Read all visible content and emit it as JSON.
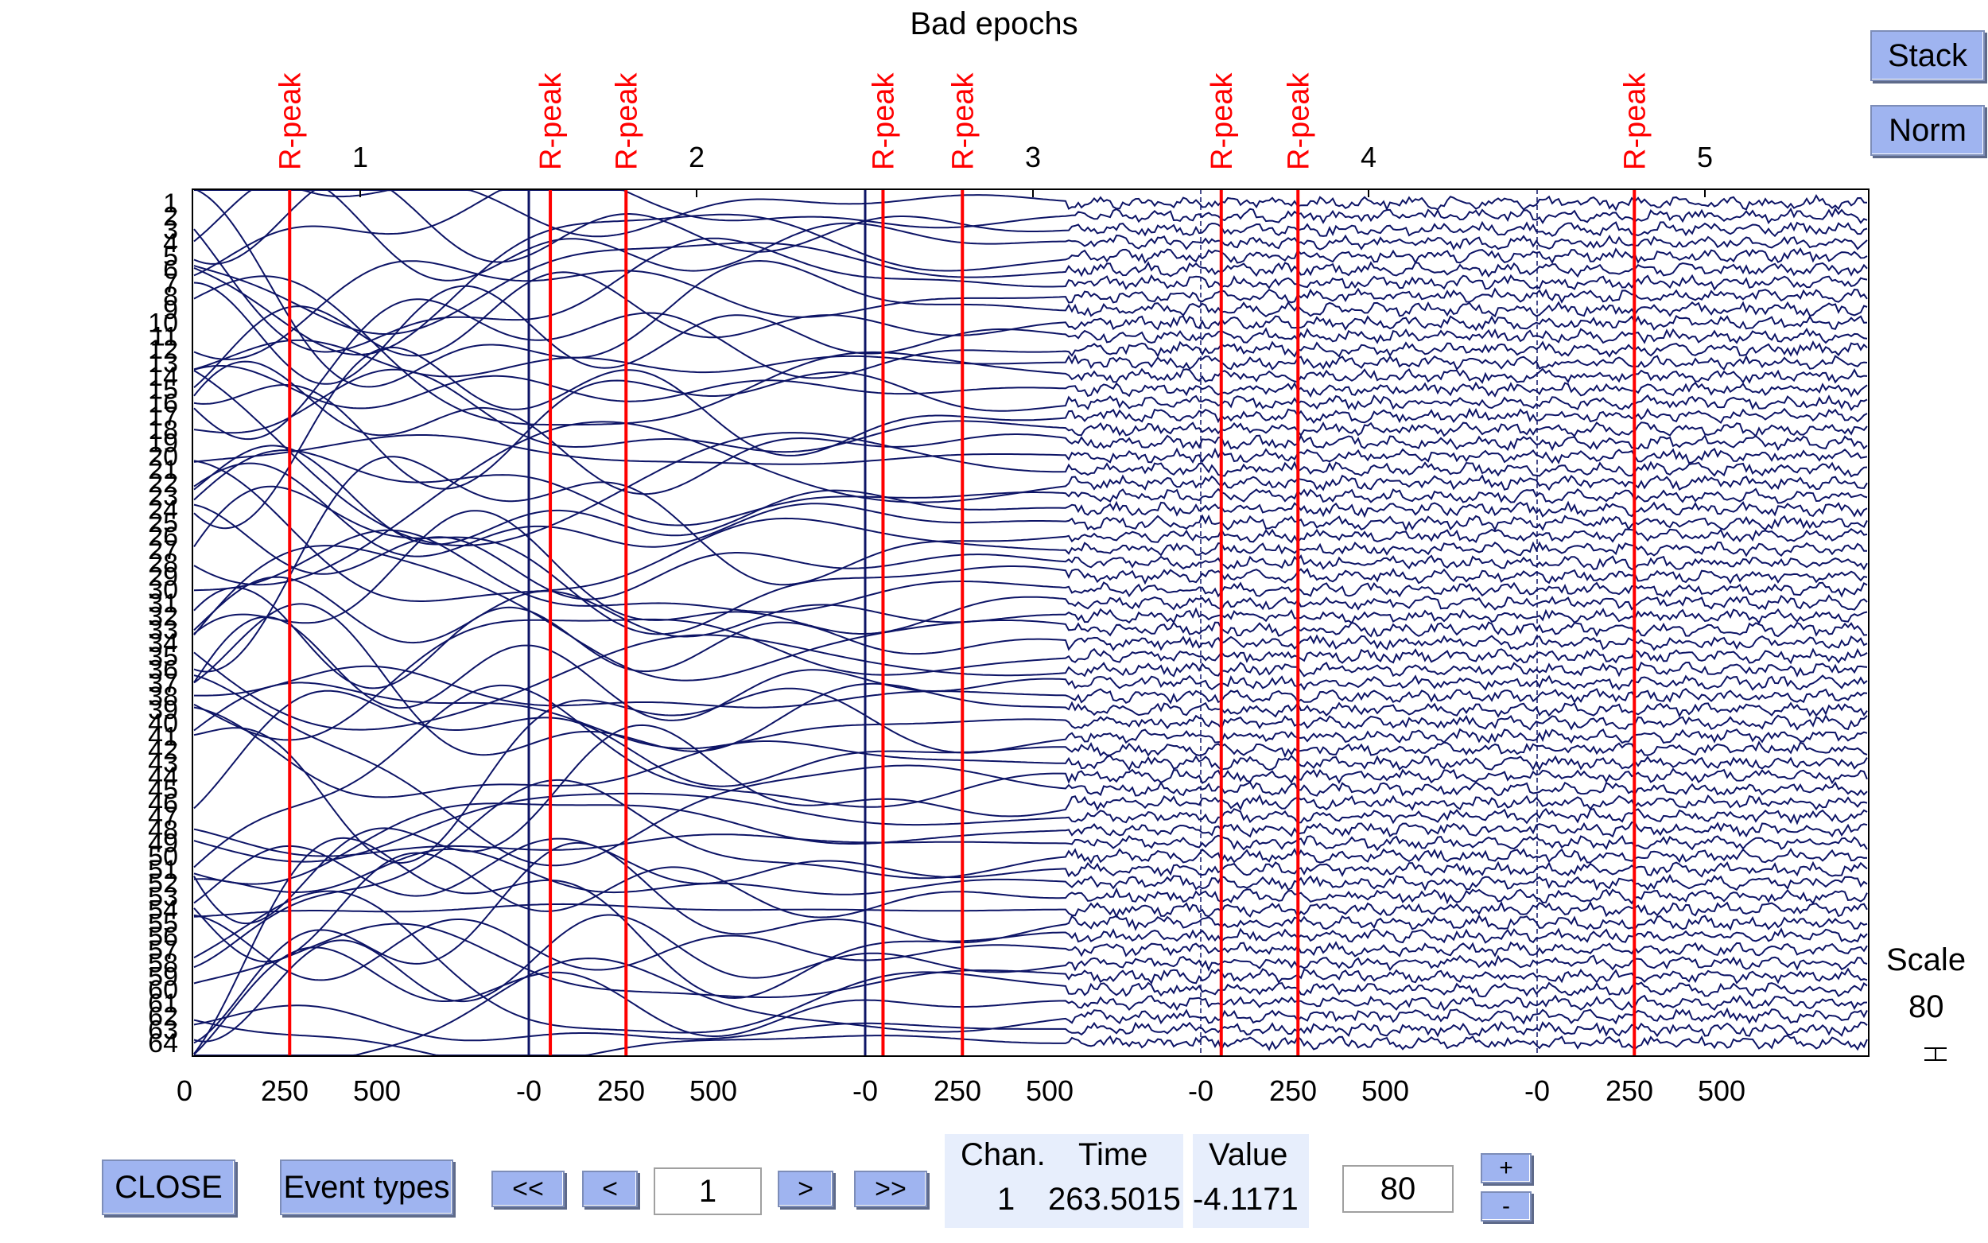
{
  "title": "Bad epochs",
  "buttons": {
    "stack": "Stack",
    "norm": "Norm",
    "close": "CLOSE",
    "event_types": "Event types",
    "first": "<<",
    "prev": "<",
    "next": ">",
    "last": ">>",
    "plus": "+",
    "minus": "-"
  },
  "scale_panel": {
    "label": "Scale",
    "value": "80"
  },
  "navigation": {
    "page": "1"
  },
  "scale_input": "80",
  "readout": {
    "chan_header": "Chan.",
    "time_header": "Time",
    "value_header": "Value",
    "chan": "1",
    "time": "263.5015",
    "value": "-4.1171"
  },
  "chart_data": {
    "type": "line",
    "title": "Bad epochs",
    "channels": [
      "1",
      "2",
      "3",
      "4",
      "5",
      "6",
      "7",
      "8",
      "9",
      "10",
      "11",
      "12",
      "13",
      "14",
      "15",
      "16",
      "17",
      "18",
      "19",
      "20",
      "21",
      "22",
      "23",
      "24",
      "25",
      "26",
      "27",
      "28",
      "29",
      "30",
      "31",
      "32",
      "33",
      "34",
      "35",
      "36",
      "37",
      "38",
      "39",
      "40",
      "41",
      "42",
      "43",
      "44",
      "45",
      "46",
      "47",
      "48",
      "49",
      "50",
      "51",
      "52",
      "53",
      "54",
      "55",
      "56",
      "57",
      "58",
      "59",
      "60",
      "61",
      "62",
      "63",
      "64"
    ],
    "epochs": [
      "1",
      "2",
      "3",
      "4",
      "5"
    ],
    "epoch_tick_labels": [
      "0",
      "250",
      "500",
      "-0",
      "250",
      "500",
      "-0",
      "250",
      "500",
      "-0",
      "250",
      "500",
      "-0",
      "250",
      "500"
    ],
    "event_label": "R-peak",
    "events": [
      {
        "epoch": 1,
        "time": 263.5
      },
      {
        "epoch": 1,
        "time": 970
      },
      {
        "epoch": 2,
        "time": 263.5
      },
      {
        "epoch": 2,
        "time": 960
      },
      {
        "epoch": 3,
        "time": 263.5
      },
      {
        "epoch": 3,
        "time": 965
      },
      {
        "epoch": 4,
        "time": 263.5
      },
      {
        "epoch": 5,
        "time": 263.5
      }
    ],
    "trace_color": "#0d1466",
    "event_color": "#ff0000"
  }
}
